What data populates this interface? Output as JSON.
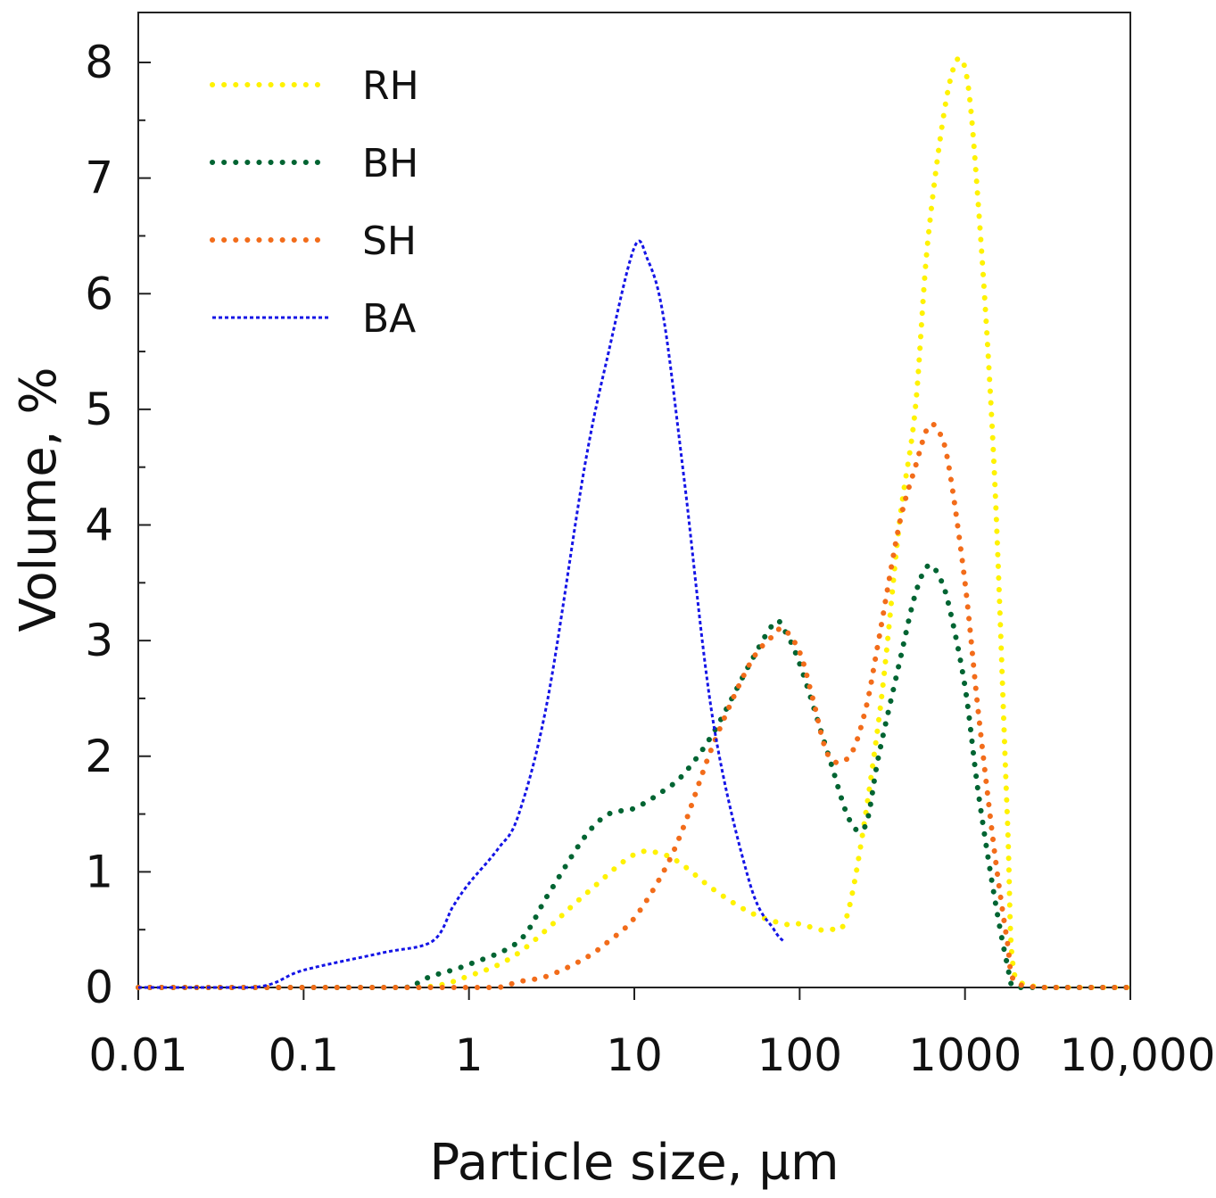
{
  "chart_data": {
    "type": "line",
    "title": "",
    "xlabel": "Particle size, µm",
    "ylabel": "Volume, %",
    "xscale": "log",
    "xlim": [
      0.01,
      10000
    ],
    "ylim": [
      0,
      8
    ],
    "x_tick_values": [
      0.01,
      0.1,
      1,
      10,
      100,
      1000,
      10000
    ],
    "x_tick_labels": [
      "0.01",
      "0.1",
      "1",
      "10",
      "100",
      "1000",
      "10,000"
    ],
    "y_tick_values": [
      0,
      1,
      2,
      3,
      4,
      5,
      6,
      7,
      8
    ],
    "y_tick_labels": [
      "0",
      "1",
      "2",
      "3",
      "4",
      "5",
      "6",
      "7",
      "8"
    ],
    "legend_position": "top-left",
    "series": [
      {
        "name": "RH",
        "color": "#FFF200",
        "line_style": "dotted",
        "x": [
          0.01,
          0.1,
          0.5,
          1,
          2,
          5,
          10,
          15,
          20,
          30,
          50,
          80,
          100,
          150,
          200,
          300,
          400,
          500,
          600,
          800,
          1000,
          1200,
          1500,
          1800,
          2000,
          3000,
          5000,
          10000
        ],
        "y": [
          0,
          0,
          0,
          0.1,
          0.3,
          0.8,
          1.15,
          1.15,
          1.05,
          0.85,
          0.65,
          0.55,
          0.55,
          0.5,
          0.7,
          2.3,
          4.0,
          5.0,
          6.5,
          7.8,
          7.95,
          6.8,
          4.5,
          1.5,
          0.1,
          0,
          0,
          0
        ]
      },
      {
        "name": "BH",
        "color": "#006432",
        "line_style": "dotted",
        "x": [
          0.01,
          0.1,
          0.4,
          0.5,
          0.6,
          1,
          2,
          3,
          5,
          7,
          10,
          15,
          20,
          30,
          50,
          70,
          80,
          100,
          150,
          200,
          250,
          300,
          400,
          500,
          600,
          700,
          800,
          1000,
          1200,
          1500,
          1800,
          2000,
          3000,
          5000,
          10000
        ],
        "y": [
          0,
          0,
          0,
          0.05,
          0.1,
          0.2,
          0.4,
          0.8,
          1.3,
          1.5,
          1.55,
          1.7,
          1.85,
          2.2,
          2.8,
          3.15,
          3.1,
          2.8,
          2.0,
          1.45,
          1.4,
          2.0,
          2.8,
          3.4,
          3.65,
          3.55,
          3.3,
          2.6,
          1.7,
          0.8,
          0.2,
          0,
          0,
          0,
          0
        ]
      },
      {
        "name": "SH",
        "color": "#F26C1A",
        "line_style": "dotted",
        "x": [
          0.01,
          0.1,
          0.5,
          1,
          1.5,
          2,
          3,
          5,
          7,
          10,
          15,
          20,
          30,
          50,
          70,
          80,
          100,
          120,
          150,
          200,
          250,
          300,
          400,
          500,
          600,
          700,
          800,
          1000,
          1200,
          1500,
          1800,
          2000,
          3000,
          5000,
          10000
        ],
        "y": [
          0,
          0,
          0,
          0,
          0,
          0.05,
          0.1,
          0.25,
          0.4,
          0.6,
          1.0,
          1.4,
          2.1,
          2.8,
          3.05,
          3.1,
          2.9,
          2.5,
          2.0,
          2.0,
          2.4,
          3.0,
          4.0,
          4.5,
          4.85,
          4.8,
          4.5,
          3.5,
          2.4,
          1.2,
          0.4,
          0.05,
          0,
          0,
          0
        ]
      },
      {
        "name": "BA",
        "color": "#1414E6",
        "line_style": "dashed",
        "x": [
          0.01,
          0.05,
          0.1,
          0.3,
          0.6,
          0.8,
          1,
          1.5,
          2,
          3,
          5,
          7,
          10,
          12,
          15,
          20,
          30,
          50,
          70,
          80
        ],
        "y": [
          0,
          0,
          0.15,
          0.3,
          0.4,
          0.7,
          0.9,
          1.2,
          1.5,
          2.5,
          4.5,
          5.5,
          6.4,
          6.3,
          5.8,
          4.4,
          2.3,
          0.9,
          0.5,
          0.4
        ]
      }
    ]
  }
}
